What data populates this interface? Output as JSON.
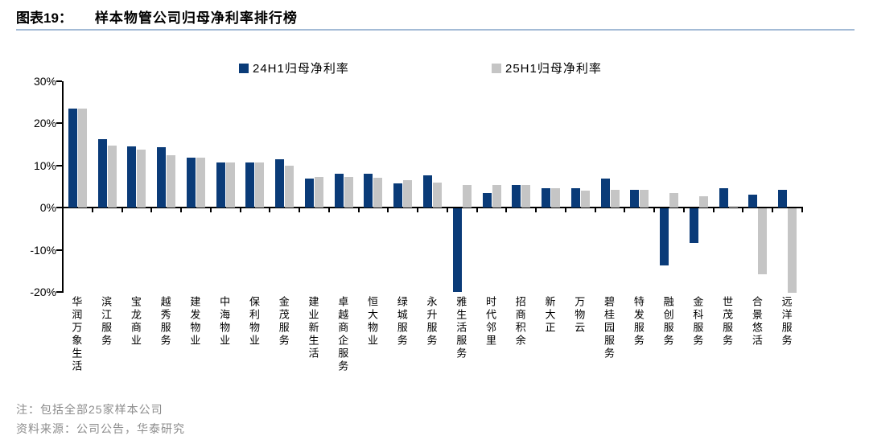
{
  "header": {
    "figure_label": "图表19：",
    "title": "样本物管公司归母净利率排行榜"
  },
  "legend": [
    {
      "label": "24H1归母净利率",
      "color": "#0a3b78"
    },
    {
      "label": "25H1归母净利率",
      "color": "#c5c5c5"
    }
  ],
  "notes": {
    "note": "注：包括全部25家样本公司",
    "source": "资料来源：公司公告，华泰研究"
  },
  "chart_data": {
    "type": "bar",
    "title": "样本物管公司归母净利率排行榜",
    "categories": [
      "华润万象生活",
      "滨江服务",
      "宝龙商业",
      "越秀服务",
      "建发物业",
      "中海物业",
      "保利物业",
      "金茂服务",
      "建业新生活",
      "卓越商企服务",
      "恒大物业",
      "绿城服务",
      "永升服务",
      "雅生活服务",
      "时代邻里",
      "招商积余",
      "新大正",
      "万物云",
      "碧桂园服务",
      "特发服务",
      "融创服务",
      "金科服务",
      "世茂服务",
      "合景悠活",
      "远洋服务"
    ],
    "series": [
      {
        "name": "24H1归母净利率",
        "color": "#0a3b78",
        "values": [
          23.5,
          16.2,
          14.5,
          14.2,
          11.9,
          10.7,
          10.7,
          11.5,
          6.9,
          8.0,
          8.0,
          5.7,
          7.6,
          -19.8,
          3.4,
          5.3,
          4.5,
          4.5,
          6.9,
          4.2,
          -13.6,
          -8.2,
          4.5,
          3.0,
          4.2
        ]
      },
      {
        "name": "25H1归母净利率",
        "color": "#c5c5c5",
        "values": [
          23.5,
          14.6,
          13.8,
          12.3,
          11.9,
          10.7,
          10.7,
          9.9,
          7.3,
          7.3,
          7.0,
          6.5,
          6.0,
          5.3,
          5.3,
          5.3,
          4.5,
          4.0,
          4.2,
          4.2,
          3.4,
          2.6,
          0.3,
          -15.7,
          -20.0
        ]
      }
    ],
    "xlabel": "",
    "ylabel": "",
    "ylim": [
      -20,
      30
    ],
    "y_ticks": [
      30,
      20,
      10,
      0,
      -10,
      -20
    ],
    "y_tick_labels": [
      "30%",
      "20%",
      "10%",
      "0%",
      "-10%",
      "-20%"
    ],
    "grid": false,
    "legend_position": "top"
  }
}
